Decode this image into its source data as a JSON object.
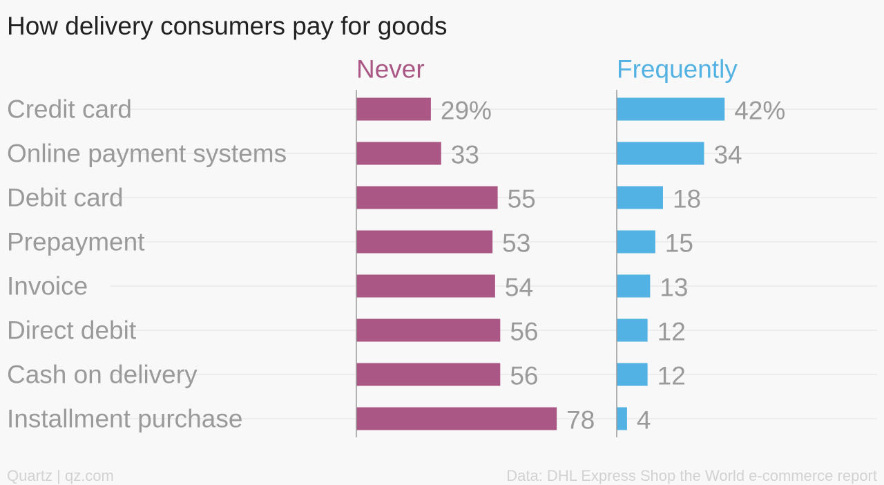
{
  "chart_data": {
    "type": "bar",
    "orientation": "horizontal",
    "title": "How delivery consumers pay for goods",
    "categories": [
      "Credit card",
      "Online payment systems",
      "Debit card",
      "Prepayment",
      "Invoice",
      "Direct debit",
      "Cash on delivery",
      "Installment purchase"
    ],
    "series": [
      {
        "name": "Never",
        "color": "#ab5786",
        "values": [
          29,
          33,
          55,
          53,
          54,
          56,
          56,
          78
        ],
        "labels": [
          "29%",
          "33",
          "55",
          "53",
          "54",
          "56",
          "56",
          "78"
        ]
      },
      {
        "name": "Frequently",
        "color": "#52b2e4",
        "values": [
          42,
          34,
          18,
          15,
          13,
          12,
          12,
          4
        ],
        "labels": [
          "42%",
          "34",
          "18",
          "15",
          "13",
          "12",
          "12",
          "4"
        ]
      }
    ],
    "xlim": [
      0,
      100
    ],
    "grid": true
  },
  "footer": {
    "left": "Quartz | qz.com",
    "right": "Data: DHL Express Shop the World e-commerce report"
  }
}
